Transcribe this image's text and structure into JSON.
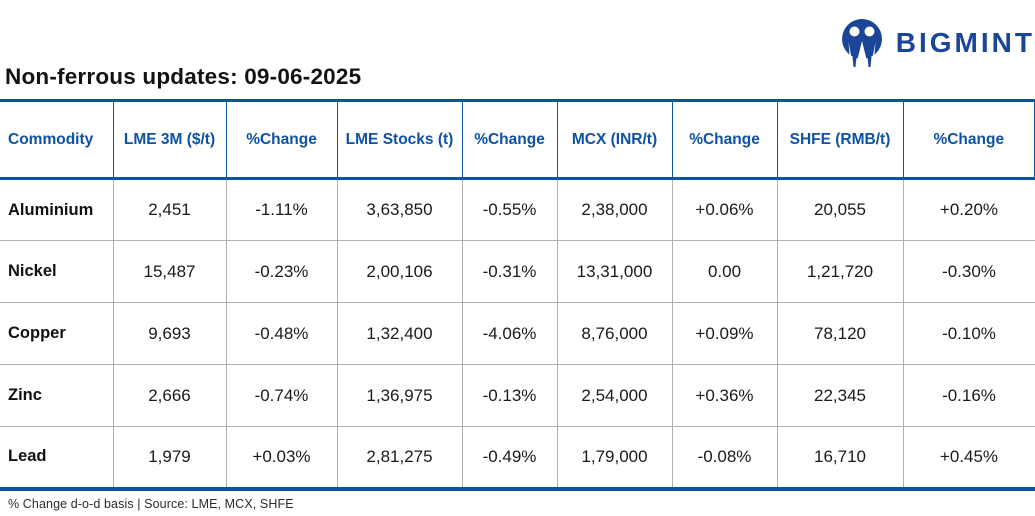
{
  "brand": {
    "name": "BIGMINT"
  },
  "title": "Non-ferrous updates: 09-06-2025",
  "colors": {
    "accent_blue": "#0d52a5",
    "logo_blue": "#1a4599",
    "negative_red": "#fa0008",
    "positive_green": "#00b26e",
    "grid_gray": "#b0b0b0"
  },
  "chart_data": {
    "type": "table",
    "title": "Non-ferrous updates: 09-06-2025",
    "columns": [
      "Commodity",
      "LME 3M ($/t)",
      "%Change",
      "LME Stocks (t)",
      "%Change",
      "MCX (INR/t)",
      "%Change",
      "SHFE (RMB/t)",
      "%Change"
    ],
    "rows": [
      [
        "Aluminium",
        "2,451",
        "-1.11%",
        "3,63,850",
        "-0.55%",
        "2,38,000",
        "+0.06%",
        "20,055",
        "+0.20%"
      ],
      [
        "Nickel",
        "15,487",
        "-0.23%",
        "2,00,106",
        "-0.31%",
        "13,31,000",
        "0.00",
        "1,21,720",
        "-0.30%"
      ],
      [
        "Copper",
        "9,693",
        "-0.48%",
        "1,32,400",
        "-4.06%",
        "8,76,000",
        "+0.09%",
        "78,120",
        "-0.10%"
      ],
      [
        "Zinc",
        "2,666",
        "-0.74%",
        "1,36,975",
        "-0.13%",
        "2,54,000",
        "+0.36%",
        "22,345",
        "-0.16%"
      ],
      [
        "Lead",
        "1,979",
        "+0.03%",
        "2,81,275",
        "-0.49%",
        "1,79,000",
        "-0.08%",
        "16,710",
        "+0.45%"
      ]
    ],
    "change_column_indices": [
      2,
      4,
      6,
      8
    ],
    "footnote": "% Change d-o-d basis | Source: LME, MCX, SHFE"
  },
  "footer": {
    "note": "% Change d-o-d basis | Source: LME, MCX, SHFE"
  }
}
